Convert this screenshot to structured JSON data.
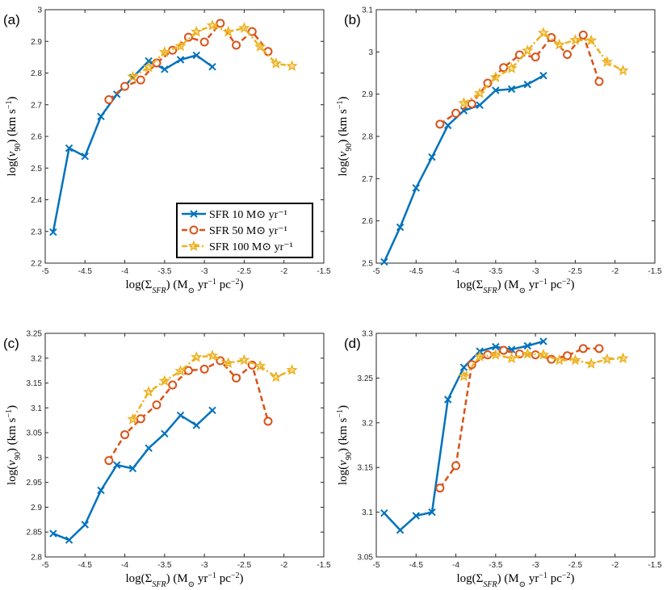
{
  "colors": {
    "series": [
      "#0072BD",
      "#D95319",
      "#EDB120"
    ],
    "axis": "#262626"
  },
  "legend": {
    "entries": [
      "SFR 10 M⊙ yr⁻¹",
      "SFR 50 M⊙ yr⁻¹",
      "SFR 100 M⊙ yr⁻¹"
    ],
    "placement": "panel-a-lower-right"
  },
  "chart_data": [
    {
      "type": "line",
      "panel": "(a)",
      "xlabel": "log(ΣSFR) (M⊙ yr⁻¹ pc⁻²)",
      "ylabel": "log(v90) (km s⁻¹)",
      "xlim": [
        -5,
        -1.5
      ],
      "ylim": [
        2.2,
        3
      ],
      "xticks": [
        -5,
        -4.5,
        -4,
        -3.5,
        -3,
        -2.5,
        -2,
        -1.5
      ],
      "xtick_labels": [
        "-5",
        "-4.5",
        "-4",
        "-3.5",
        "-3",
        "-2.5",
        "-2",
        "-1.5"
      ],
      "yticks": [
        2.2,
        2.3,
        2.4,
        2.5,
        2.6,
        2.7,
        2.8,
        2.9,
        3
      ],
      "ytick_labels": [
        "2.2",
        "2.3",
        "2.4",
        "2.5",
        "2.6",
        "2.7",
        "2.8",
        "2.9",
        "3"
      ],
      "series": [
        {
          "name": "SFR 10 M⊙ yr⁻¹",
          "marker": "x",
          "dash": "solid",
          "x": [
            -4.9,
            -4.7,
            -4.5,
            -4.3,
            -4.1,
            -3.9,
            -3.7,
            -3.5,
            -3.3,
            -3.1,
            -2.9
          ],
          "y": [
            2.298,
            2.563,
            2.537,
            2.663,
            2.733,
            2.786,
            2.838,
            2.812,
            2.842,
            2.856,
            2.82
          ]
        },
        {
          "name": "SFR 50 M⊙ yr⁻¹",
          "marker": "o",
          "dash": "dash",
          "x": [
            -4.2,
            -4.0,
            -3.8,
            -3.6,
            -3.4,
            -3.2,
            -3.0,
            -2.8,
            -2.6,
            -2.4,
            -2.2
          ],
          "y": [
            2.716,
            2.758,
            2.778,
            2.832,
            2.872,
            2.913,
            2.898,
            2.957,
            2.888,
            2.931,
            2.868
          ]
        },
        {
          "name": "SFR 100 M⊙ yr⁻¹",
          "marker": "star",
          "dash": "dashdot",
          "x": [
            -3.9,
            -3.7,
            -3.5,
            -3.3,
            -3.1,
            -2.9,
            -2.7,
            -2.5,
            -2.3,
            -2.1,
            -1.9
          ],
          "y": [
            2.788,
            2.818,
            2.866,
            2.885,
            2.93,
            2.95,
            2.93,
            2.942,
            2.883,
            2.83,
            2.822
          ]
        }
      ]
    },
    {
      "type": "line",
      "panel": "(b)",
      "xlabel": "log(ΣSFR) (M⊙ yr⁻¹ pc⁻²)",
      "ylabel": "log(v90) (km s⁻¹)",
      "xlim": [
        -5,
        -1.5
      ],
      "ylim": [
        2.5,
        3.1
      ],
      "xticks": [
        -5,
        -4.5,
        -4,
        -3.5,
        -3,
        -2.5,
        -2,
        -1.5
      ],
      "xtick_labels": [
        "-5",
        "-4.5",
        "-4",
        "-3.5",
        "-3",
        "-2.5",
        "-2",
        "-1.5"
      ],
      "yticks": [
        2.5,
        2.6,
        2.7,
        2.8,
        2.9,
        3,
        3.1
      ],
      "ytick_labels": [
        "2.5",
        "2.6",
        "2.7",
        "2.8",
        "2.9",
        "3",
        "3.1"
      ],
      "series": [
        {
          "name": "SFR 10 M⊙ yr⁻¹",
          "marker": "x",
          "dash": "solid",
          "x": [
            -4.9,
            -4.7,
            -4.5,
            -4.3,
            -4.1,
            -3.9,
            -3.7,
            -3.5,
            -3.3,
            -3.1,
            -2.9
          ],
          "y": [
            2.503,
            2.585,
            2.678,
            2.751,
            2.826,
            2.861,
            2.874,
            2.909,
            2.912,
            2.923,
            2.944
          ]
        },
        {
          "name": "SFR 50 M⊙ yr⁻¹",
          "marker": "o",
          "dash": "dash",
          "x": [
            -4.2,
            -4.0,
            -3.8,
            -3.6,
            -3.4,
            -3.2,
            -3.0,
            -2.8,
            -2.6,
            -2.4,
            -2.2
          ],
          "y": [
            2.829,
            2.855,
            2.877,
            2.926,
            2.963,
            2.993,
            2.988,
            3.034,
            2.994,
            3.04,
            2.93
          ]
        },
        {
          "name": "SFR 100 M⊙ yr⁻¹",
          "marker": "star",
          "dash": "dashdot",
          "x": [
            -3.9,
            -3.7,
            -3.5,
            -3.3,
            -3.1,
            -2.9,
            -2.7,
            -2.5,
            -2.3,
            -2.1,
            -1.9
          ],
          "y": [
            2.879,
            2.902,
            2.94,
            2.961,
            3.003,
            3.045,
            3.017,
            3.028,
            3.027,
            2.976,
            2.956
          ]
        }
      ]
    },
    {
      "type": "line",
      "panel": "(c)",
      "xlabel": "log(ΣSFR) (M⊙ yr⁻¹ pc⁻²)",
      "ylabel": "log(v90) (km s⁻¹)",
      "xlim": [
        -5,
        -1.5
      ],
      "ylim": [
        2.8,
        3.25
      ],
      "xticks": [
        -5,
        -4.5,
        -4,
        -3.5,
        -3,
        -2.5,
        -2,
        -1.5
      ],
      "xtick_labels": [
        "-5",
        "-4.5",
        "-4",
        "-3.5",
        "-3",
        "-2.5",
        "-2",
        "-1.5"
      ],
      "yticks": [
        2.8,
        2.85,
        2.9,
        2.95,
        3,
        3.05,
        3.1,
        3.15,
        3.2,
        3.25
      ],
      "ytick_labels": [
        "2.8",
        "2.85",
        "2.9",
        "2.95",
        "3",
        "3.05",
        "3.1",
        "3.15",
        "3.2",
        "3.25"
      ],
      "series": [
        {
          "name": "SFR 10 M⊙ yr⁻¹",
          "marker": "x",
          "dash": "solid",
          "x": [
            -4.9,
            -4.7,
            -4.5,
            -4.3,
            -4.1,
            -3.9,
            -3.7,
            -3.5,
            -3.3,
            -3.1,
            -2.9
          ],
          "y": [
            2.847,
            2.834,
            2.865,
            2.934,
            2.985,
            2.978,
            3.019,
            3.048,
            3.085,
            3.065,
            3.095
          ]
        },
        {
          "name": "SFR 50 M⊙ yr⁻¹",
          "marker": "o",
          "dash": "dash",
          "x": [
            -4.2,
            -4.0,
            -3.8,
            -3.6,
            -3.4,
            -3.2,
            -3.0,
            -2.8,
            -2.6,
            -2.4,
            -2.2
          ],
          "y": [
            2.994,
            3.046,
            3.078,
            3.106,
            3.146,
            3.175,
            3.178,
            3.195,
            3.16,
            3.186,
            3.073
          ]
        },
        {
          "name": "SFR 100 M⊙ yr⁻¹",
          "marker": "star",
          "dash": "dashdot",
          "x": [
            -3.9,
            -3.7,
            -3.5,
            -3.3,
            -3.1,
            -2.9,
            -2.7,
            -2.5,
            -2.3,
            -2.1,
            -1.9
          ],
          "y": [
            3.077,
            3.132,
            3.154,
            3.174,
            3.202,
            3.205,
            3.19,
            3.196,
            3.184,
            3.162,
            3.176
          ]
        }
      ]
    },
    {
      "type": "line",
      "panel": "(d)",
      "xlabel": "log(ΣSFR) (M⊙ yr⁻¹ pc⁻²)",
      "ylabel": "log(v90) (km s⁻¹)",
      "xlim": [
        -5,
        -1.5
      ],
      "ylim": [
        3.05,
        3.3
      ],
      "xticks": [
        -5,
        -4.5,
        -4,
        -3.5,
        -3,
        -2.5,
        -2,
        -1.5
      ],
      "xtick_labels": [
        "-5",
        "-4.5",
        "-4",
        "-3.5",
        "-3",
        "-2.5",
        "-2",
        "-1.5"
      ],
      "yticks": [
        3.05,
        3.1,
        3.15,
        3.2,
        3.25,
        3.3
      ],
      "ytick_labels": [
        "3.05",
        "3.1",
        "3.15",
        "3.2",
        "3.25",
        "3.3"
      ],
      "series": [
        {
          "name": "SFR 10 M⊙ yr⁻¹",
          "marker": "x",
          "dash": "solid",
          "x": [
            -4.9,
            -4.7,
            -4.5,
            -4.3,
            -4.1,
            -3.9,
            -3.7,
            -3.5,
            -3.3,
            -3.1,
            -2.9
          ],
          "y": [
            3.099,
            3.08,
            3.096,
            3.1,
            3.226,
            3.262,
            3.28,
            3.285,
            3.282,
            3.286,
            3.291
          ]
        },
        {
          "name": "SFR 50 M⊙ yr⁻¹",
          "marker": "o",
          "dash": "dash",
          "x": [
            -4.2,
            -4.0,
            -3.8,
            -3.6,
            -3.4,
            -3.2,
            -3.0,
            -2.8,
            -2.6,
            -2.4,
            -2.2
          ],
          "y": [
            3.127,
            3.152,
            3.265,
            3.276,
            3.281,
            3.277,
            3.276,
            3.271,
            3.275,
            3.283,
            3.283
          ]
        },
        {
          "name": "SFR 100 M⊙ yr⁻¹",
          "marker": "star",
          "dash": "dashdot",
          "x": [
            -3.9,
            -3.7,
            -3.5,
            -3.3,
            -3.1,
            -2.9,
            -2.7,
            -2.5,
            -2.3,
            -2.1,
            -1.9
          ],
          "y": [
            3.252,
            3.274,
            3.276,
            3.272,
            3.277,
            3.276,
            3.27,
            3.27,
            3.266,
            3.271,
            3.272
          ]
        }
      ]
    }
  ]
}
